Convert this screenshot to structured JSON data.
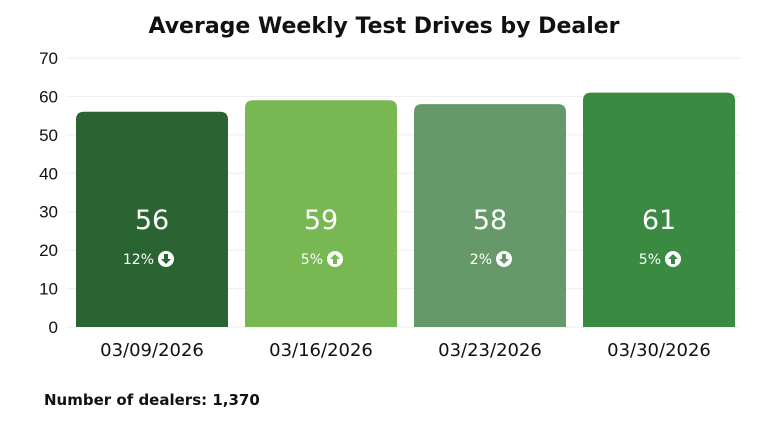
{
  "chart_data": {
    "type": "bar",
    "title": "Average Weekly Test Drives by Dealer",
    "categories": [
      "03/09/2026",
      "03/16/2026",
      "03/23/2026",
      "03/30/2026"
    ],
    "values": [
      56,
      59,
      58,
      61
    ],
    "changes": [
      {
        "label": "12%",
        "direction": "down"
      },
      {
        "label": "5%",
        "direction": "up"
      },
      {
        "label": "2%",
        "direction": "down"
      },
      {
        "label": "5%",
        "direction": "up"
      }
    ],
    "colors": [
      "#2b6433",
      "#77b852",
      "#66996a",
      "#3b8a41"
    ],
    "ylim": [
      0,
      70
    ],
    "yticks": [
      0,
      10,
      20,
      30,
      40,
      50,
      60,
      70
    ],
    "grid": true,
    "xlabel": "",
    "ylabel": ""
  },
  "footer": "Number of dealers: 1,370"
}
